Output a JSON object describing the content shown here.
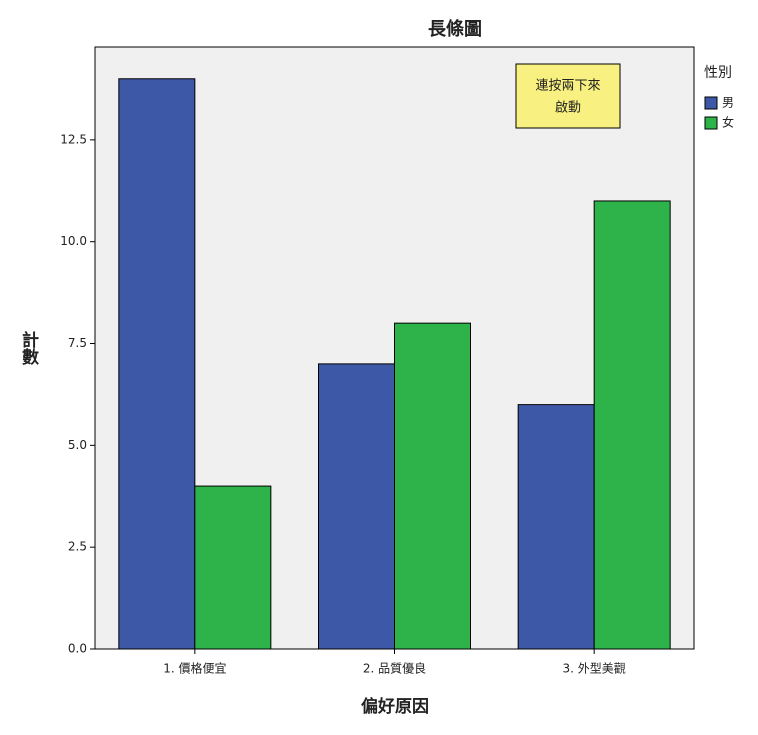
{
  "chart_data": {
    "type": "bar",
    "title": "長條圖",
    "x_label": "偏好原因",
    "y_label": "計數",
    "categories": [
      "1. 價格便宜",
      "2. 品質優良",
      "3. 外型美觀"
    ],
    "series": [
      {
        "name": "男",
        "color": "#3e58a8",
        "values": [
          14,
          7,
          6
        ]
      },
      {
        "name": "女",
        "color": "#2db34a",
        "values": [
          4,
          8,
          11
        ]
      }
    ],
    "legend_title": "性別",
    "legend_position": "right",
    "annotation": [
      "連按兩下來",
      "啟動"
    ],
    "ylim": [
      0,
      14.78
    ],
    "yticks": [
      {
        "value": 0,
        "label": "0.0"
      },
      2.5,
      {
        "value": 5,
        "label": "5.0"
      },
      7.5,
      {
        "value": 10,
        "label": "10.0"
      },
      12.5
    ]
  }
}
